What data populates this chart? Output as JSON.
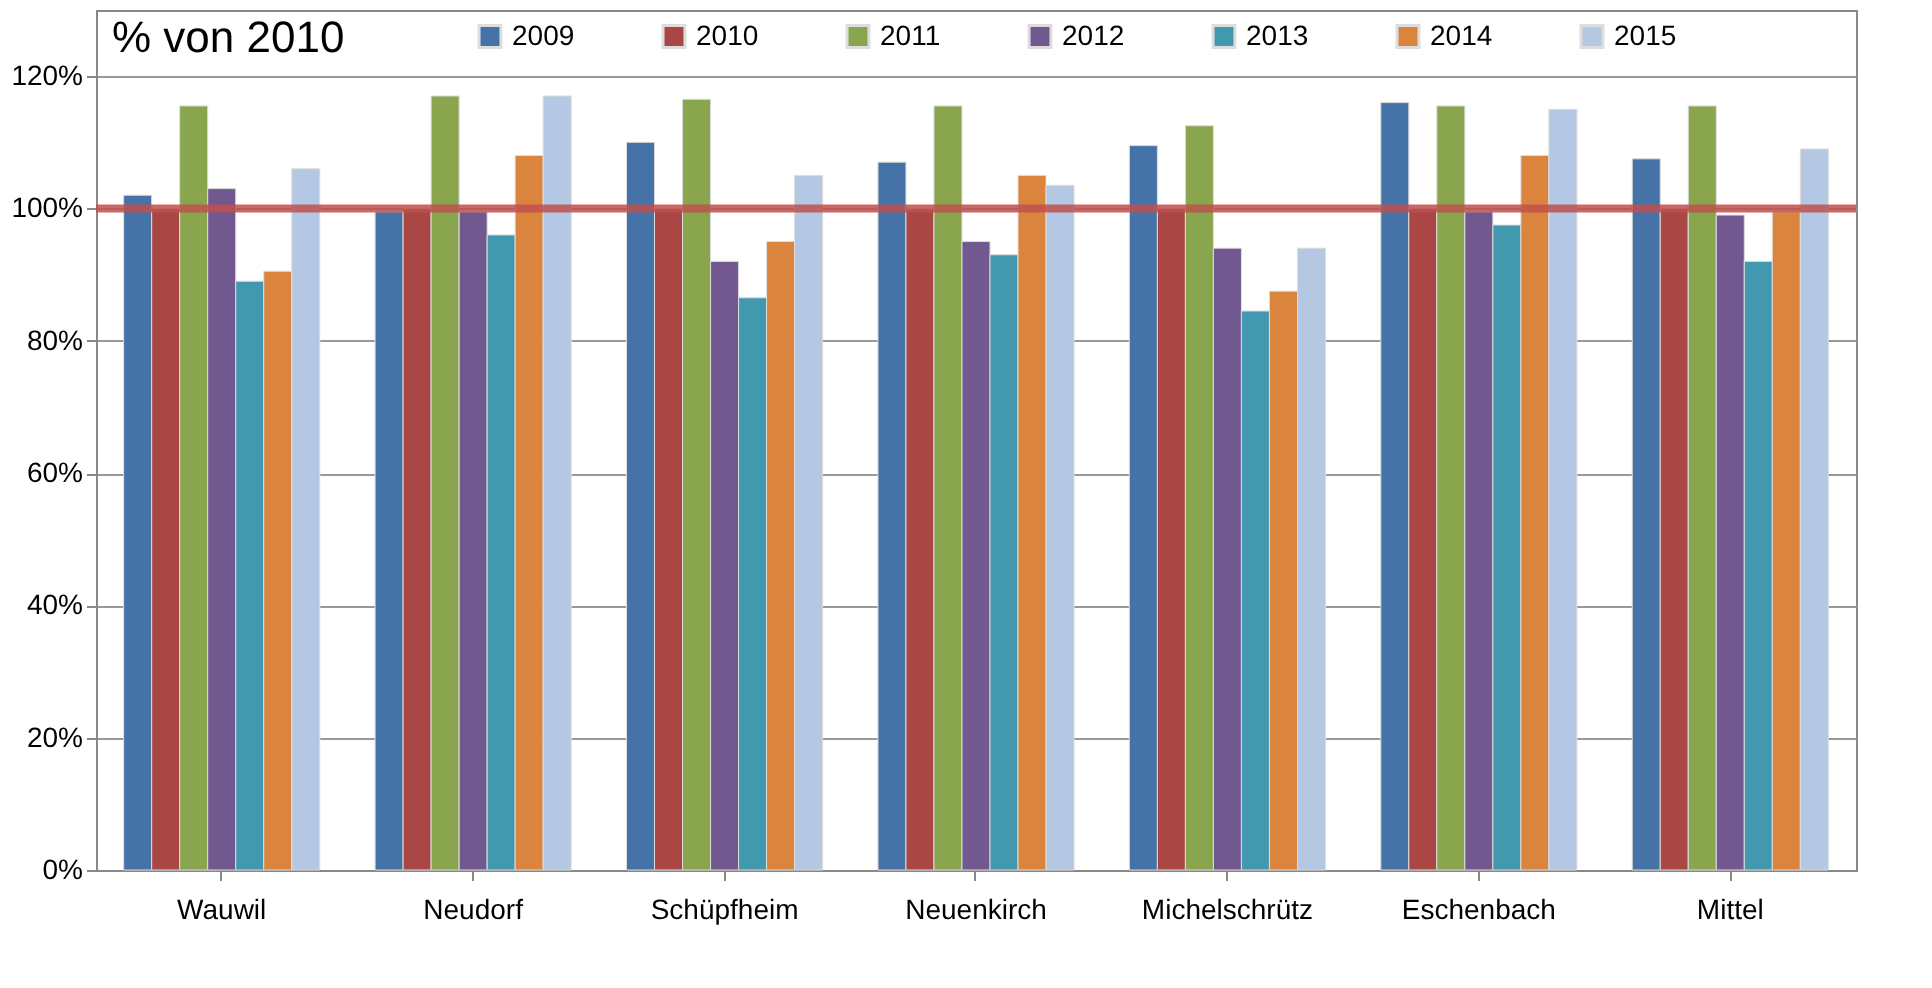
{
  "chart_data": {
    "type": "bar",
    "title": "% von 2010",
    "categories": [
      "Wauwil",
      "Neudorf",
      "Schüpfheim",
      "Neuenkirch",
      "Michelschrütz",
      "Eschenbach",
      "Mittel"
    ],
    "series": [
      {
        "name": "2009",
        "color": "#4572a7",
        "values": [
          102,
          99.5,
          110,
          107,
          109.5,
          116,
          107.5
        ]
      },
      {
        "name": "2010",
        "color": "#aa4643",
        "values": [
          100,
          100,
          100,
          100,
          100,
          100,
          100
        ]
      },
      {
        "name": "2011",
        "color": "#89a54e",
        "values": [
          115.5,
          117,
          116.5,
          115.5,
          112.5,
          115.5,
          115.5
        ]
      },
      {
        "name": "2012",
        "color": "#71588f",
        "values": [
          103,
          99.5,
          92,
          95,
          94,
          99.5,
          99
        ]
      },
      {
        "name": "2013",
        "color": "#4198af",
        "values": [
          89,
          96,
          86.5,
          93,
          84.5,
          97.5,
          92
        ]
      },
      {
        "name": "2014",
        "color": "#db843d",
        "values": [
          90.5,
          108,
          95,
          105,
          87.5,
          108,
          99.5
        ]
      },
      {
        "name": "2015",
        "color": "#b4c8e3",
        "values": [
          106,
          117,
          105,
          103.5,
          94,
          115,
          109
        ]
      }
    ],
    "ylim": [
      0,
      130
    ],
    "yticks": [
      {
        "value": 0,
        "label": "0%"
      },
      {
        "value": 20,
        "label": "20%"
      },
      {
        "value": 40,
        "label": "40%"
      },
      {
        "value": 60,
        "label": "60%"
      },
      {
        "value": 80,
        "label": "80%"
      },
      {
        "value": 100,
        "label": "100%"
      },
      {
        "value": 120,
        "label": "120%"
      }
    ],
    "grid": "y",
    "legend": "top",
    "ref_lines": [
      {
        "axis": "y",
        "value": 100,
        "color": "#c0504d"
      }
    ]
  }
}
